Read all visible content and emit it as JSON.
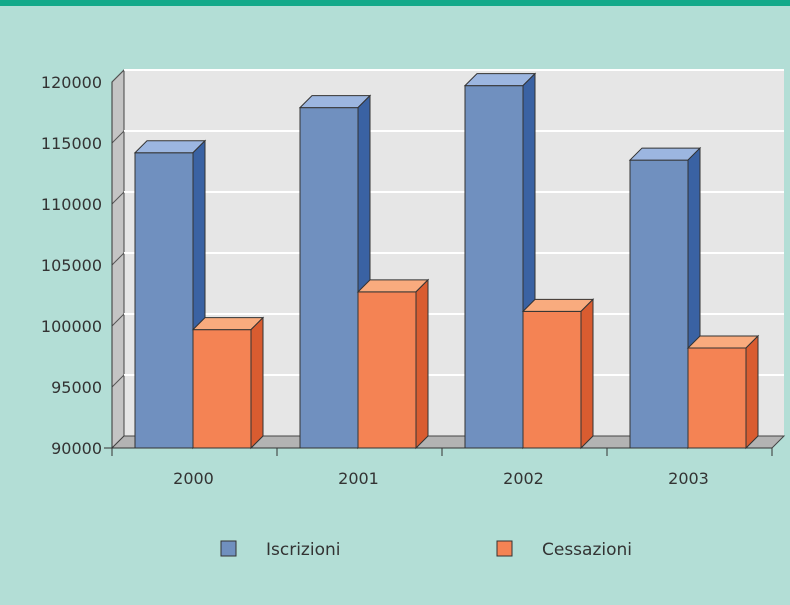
{
  "colors": {
    "background": "#b3ded6",
    "top_band": "#13a98a",
    "plot_wall": "#e6e6e6",
    "side_wall": "#c4c4c4",
    "floor": "#b3b3b3",
    "iscrizioni_front": "#7090bf",
    "iscrizioni_top": "#9cb6e0",
    "iscrizioni_side": "#3a62a3",
    "cessazioni_front": "#f48354",
    "cessazioni_top": "#f9ab7e",
    "cessazioni_side": "#d95c30"
  },
  "chart_data": {
    "type": "bar",
    "style": "3d-clustered",
    "categories": [
      "2000",
      "2001",
      "2002",
      "2003"
    ],
    "series": [
      {
        "name": "Iscrizioni",
        "values": [
          114200,
          117900,
          119700,
          113600
        ]
      },
      {
        "name": "Cessazioni",
        "values": [
          99700,
          102800,
          101200,
          98200
        ]
      }
    ],
    "ylim": [
      90000,
      120000
    ],
    "yticks": [
      "90000",
      "95000",
      "100000",
      "105000",
      "110000",
      "115000",
      "120000"
    ],
    "grid": true,
    "legend_position": "bottom"
  }
}
